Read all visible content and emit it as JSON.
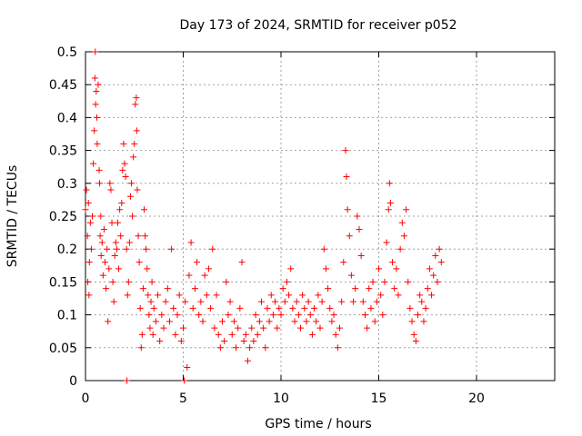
{
  "chart_data": {
    "type": "scatter",
    "title": "Day 173 of 2024, SRMTID for receiver p052",
    "xlabel": "GPS time / hours",
    "ylabel": "SRMTID / TECUs",
    "xlim": [
      0,
      24
    ],
    "ylim": [
      0,
      0.5
    ],
    "xticks": [
      0,
      5,
      10,
      15,
      20
    ],
    "xtick_labels": [
      "0",
      "5",
      "10",
      "15",
      "20"
    ],
    "yticks": [
      0,
      0.05,
      0.1,
      0.15,
      0.2,
      0.25,
      0.3,
      0.35,
      0.4,
      0.45,
      0.5
    ],
    "ytick_labels": [
      "0",
      "0.05",
      "0.1",
      "0.15",
      "0.2",
      "0.25",
      "0.3",
      "0.35",
      "0.4",
      "0.45",
      "0.5"
    ],
    "grid": true,
    "marker": "+",
    "series": [
      {
        "name": "SRMTID p052",
        "color": "#ff0000",
        "points": [
          [
            0.0,
            0.26
          ],
          [
            0.05,
            0.29
          ],
          [
            0.1,
            0.22
          ],
          [
            0.12,
            0.15
          ],
          [
            0.15,
            0.27
          ],
          [
            0.18,
            0.13
          ],
          [
            0.2,
            0.18
          ],
          [
            0.25,
            0.24
          ],
          [
            0.3,
            0.2
          ],
          [
            0.35,
            0.25
          ],
          [
            0.4,
            0.33
          ],
          [
            0.45,
            0.38
          ],
          [
            0.48,
            0.46
          ],
          [
            0.5,
            0.5
          ],
          [
            0.52,
            0.42
          ],
          [
            0.55,
            0.44
          ],
          [
            0.58,
            0.4
          ],
          [
            0.6,
            0.36
          ],
          [
            0.65,
            0.45
          ],
          [
            0.7,
            0.32
          ],
          [
            0.72,
            0.3
          ],
          [
            0.75,
            0.22
          ],
          [
            0.78,
            0.25
          ],
          [
            0.8,
            0.19
          ],
          [
            0.85,
            0.21
          ],
          [
            0.9,
            0.16
          ],
          [
            0.95,
            0.23
          ],
          [
            1.0,
            0.18
          ],
          [
            1.05,
            0.14
          ],
          [
            1.1,
            0.2
          ],
          [
            1.15,
            0.09
          ],
          [
            1.2,
            0.17
          ],
          [
            1.25,
            0.3
          ],
          [
            1.3,
            0.29
          ],
          [
            1.35,
            0.24
          ],
          [
            1.4,
            0.15
          ],
          [
            1.45,
            0.12
          ],
          [
            1.5,
            0.19
          ],
          [
            1.55,
            0.21
          ],
          [
            1.6,
            0.2
          ],
          [
            1.65,
            0.24
          ],
          [
            1.7,
            0.17
          ],
          [
            1.75,
            0.26
          ],
          [
            1.8,
            0.22
          ],
          [
            1.85,
            0.27
          ],
          [
            1.9,
            0.32
          ],
          [
            1.95,
            0.36
          ],
          [
            2.0,
            0.33
          ],
          [
            2.05,
            0.31
          ],
          [
            2.1,
            0.2
          ],
          [
            2.12,
            0.0
          ],
          [
            2.15,
            0.13
          ],
          [
            2.2,
            0.15
          ],
          [
            2.25,
            0.21
          ],
          [
            2.3,
            0.28
          ],
          [
            2.35,
            0.3
          ],
          [
            2.4,
            0.25
          ],
          [
            2.45,
            0.34
          ],
          [
            2.5,
            0.36
          ],
          [
            2.55,
            0.42
          ],
          [
            2.6,
            0.43
          ],
          [
            2.62,
            0.38
          ],
          [
            2.65,
            0.29
          ],
          [
            2.7,
            0.22
          ],
          [
            2.75,
            0.18
          ],
          [
            2.8,
            0.11
          ],
          [
            2.85,
            0.05
          ],
          [
            2.9,
            0.07
          ],
          [
            2.95,
            0.14
          ],
          [
            3.0,
            0.26
          ],
          [
            3.05,
            0.22
          ],
          [
            3.1,
            0.2
          ],
          [
            3.15,
            0.17
          ],
          [
            3.2,
            0.13
          ],
          [
            3.25,
            0.1
          ],
          [
            3.3,
            0.08
          ],
          [
            3.35,
            0.12
          ],
          [
            3.4,
            0.15
          ],
          [
            3.45,
            0.07
          ],
          [
            3.5,
            0.11
          ],
          [
            3.6,
            0.09
          ],
          [
            3.7,
            0.13
          ],
          [
            3.8,
            0.06
          ],
          [
            3.9,
            0.1
          ],
          [
            4.0,
            0.08
          ],
          [
            4.1,
            0.12
          ],
          [
            4.2,
            0.14
          ],
          [
            4.3,
            0.09
          ],
          [
            4.4,
            0.2
          ],
          [
            4.5,
            0.11
          ],
          [
            4.6,
            0.07
          ],
          [
            4.7,
            0.1
          ],
          [
            4.8,
            0.13
          ],
          [
            4.9,
            0.06
          ],
          [
            5.0,
            0.08
          ],
          [
            5.05,
            0.0
          ],
          [
            5.1,
            0.12
          ],
          [
            5.2,
            0.02
          ],
          [
            5.3,
            0.16
          ],
          [
            5.4,
            0.21
          ],
          [
            5.5,
            0.11
          ],
          [
            5.6,
            0.14
          ],
          [
            5.7,
            0.18
          ],
          [
            5.8,
            0.1
          ],
          [
            5.9,
            0.12
          ],
          [
            6.0,
            0.09
          ],
          [
            6.1,
            0.16
          ],
          [
            6.2,
            0.13
          ],
          [
            6.3,
            0.17
          ],
          [
            6.4,
            0.11
          ],
          [
            6.5,
            0.2
          ],
          [
            6.6,
            0.08
          ],
          [
            6.7,
            0.13
          ],
          [
            6.8,
            0.07
          ],
          [
            6.9,
            0.05
          ],
          [
            7.0,
            0.09
          ],
          [
            7.1,
            0.06
          ],
          [
            7.2,
            0.15
          ],
          [
            7.3,
            0.1
          ],
          [
            7.4,
            0.12
          ],
          [
            7.5,
            0.07
          ],
          [
            7.6,
            0.09
          ],
          [
            7.7,
            0.05
          ],
          [
            7.8,
            0.08
          ],
          [
            7.9,
            0.11
          ],
          [
            8.0,
            0.18
          ],
          [
            8.1,
            0.06
          ],
          [
            8.2,
            0.07
          ],
          [
            8.3,
            0.03
          ],
          [
            8.4,
            0.05
          ],
          [
            8.5,
            0.08
          ],
          [
            8.6,
            0.06
          ],
          [
            8.7,
            0.1
          ],
          [
            8.8,
            0.07
          ],
          [
            8.9,
            0.09
          ],
          [
            9.0,
            0.12
          ],
          [
            9.1,
            0.08
          ],
          [
            9.2,
            0.05
          ],
          [
            9.3,
            0.11
          ],
          [
            9.4,
            0.09
          ],
          [
            9.5,
            0.13
          ],
          [
            9.6,
            0.1
          ],
          [
            9.7,
            0.12
          ],
          [
            9.8,
            0.08
          ],
          [
            9.9,
            0.11
          ],
          [
            10.0,
            0.1
          ],
          [
            10.1,
            0.14
          ],
          [
            10.2,
            0.12
          ],
          [
            10.3,
            0.15
          ],
          [
            10.4,
            0.13
          ],
          [
            10.5,
            0.17
          ],
          [
            10.6,
            0.11
          ],
          [
            10.7,
            0.09
          ],
          [
            10.8,
            0.12
          ],
          [
            10.9,
            0.1
          ],
          [
            11.0,
            0.08
          ],
          [
            11.1,
            0.13
          ],
          [
            11.2,
            0.11
          ],
          [
            11.3,
            0.09
          ],
          [
            11.4,
            0.12
          ],
          [
            11.5,
            0.1
          ],
          [
            11.6,
            0.07
          ],
          [
            11.7,
            0.11
          ],
          [
            11.8,
            0.09
          ],
          [
            11.9,
            0.13
          ],
          [
            12.0,
            0.08
          ],
          [
            12.1,
            0.12
          ],
          [
            12.2,
            0.2
          ],
          [
            12.3,
            0.17
          ],
          [
            12.4,
            0.14
          ],
          [
            12.5,
            0.11
          ],
          [
            12.6,
            0.09
          ],
          [
            12.7,
            0.1
          ],
          [
            12.8,
            0.07
          ],
          [
            12.9,
            0.05
          ],
          [
            13.0,
            0.08
          ],
          [
            13.1,
            0.12
          ],
          [
            13.2,
            0.18
          ],
          [
            13.3,
            0.35
          ],
          [
            13.35,
            0.31
          ],
          [
            13.4,
            0.26
          ],
          [
            13.5,
            0.22
          ],
          [
            13.6,
            0.16
          ],
          [
            13.7,
            0.12
          ],
          [
            13.8,
            0.14
          ],
          [
            13.9,
            0.25
          ],
          [
            14.0,
            0.23
          ],
          [
            14.1,
            0.19
          ],
          [
            14.2,
            0.12
          ],
          [
            14.3,
            0.1
          ],
          [
            14.4,
            0.08
          ],
          [
            14.5,
            0.14
          ],
          [
            14.6,
            0.11
          ],
          [
            14.7,
            0.15
          ],
          [
            14.8,
            0.09
          ],
          [
            14.9,
            0.12
          ],
          [
            15.0,
            0.17
          ],
          [
            15.1,
            0.13
          ],
          [
            15.2,
            0.1
          ],
          [
            15.3,
            0.15
          ],
          [
            15.4,
            0.21
          ],
          [
            15.5,
            0.26
          ],
          [
            15.55,
            0.3
          ],
          [
            15.6,
            0.27
          ],
          [
            15.7,
            0.18
          ],
          [
            15.8,
            0.14
          ],
          [
            15.9,
            0.17
          ],
          [
            16.0,
            0.13
          ],
          [
            16.1,
            0.2
          ],
          [
            16.2,
            0.24
          ],
          [
            16.3,
            0.22
          ],
          [
            16.4,
            0.26
          ],
          [
            16.5,
            0.15
          ],
          [
            16.6,
            0.11
          ],
          [
            16.7,
            0.09
          ],
          [
            16.8,
            0.07
          ],
          [
            16.9,
            0.06
          ],
          [
            17.0,
            0.1
          ],
          [
            17.1,
            0.13
          ],
          [
            17.2,
            0.12
          ],
          [
            17.3,
            0.09
          ],
          [
            17.4,
            0.11
          ],
          [
            17.5,
            0.14
          ],
          [
            17.6,
            0.17
          ],
          [
            17.7,
            0.13
          ],
          [
            17.8,
            0.16
          ],
          [
            17.9,
            0.19
          ],
          [
            18.0,
            0.15
          ],
          [
            18.1,
            0.2
          ],
          [
            18.2,
            0.18
          ]
        ]
      }
    ]
  }
}
